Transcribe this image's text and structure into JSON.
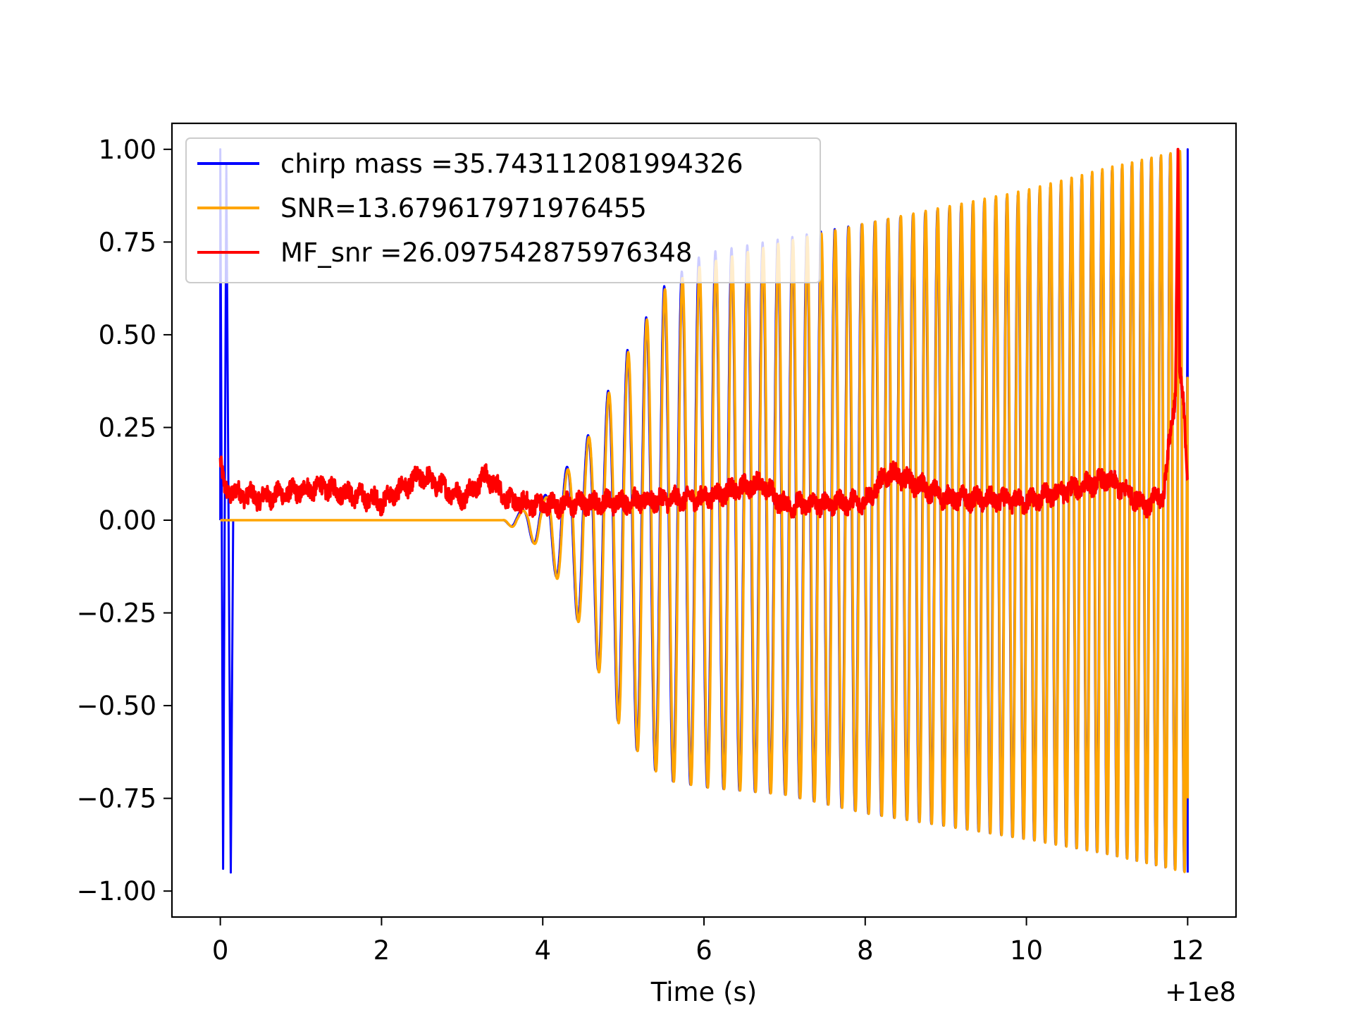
{
  "chart_data": {
    "type": "line",
    "title": "",
    "xlabel": "Time (s)",
    "ylabel": "",
    "x_offset_label": "+1e8",
    "xlim": [
      -0.6,
      12.6
    ],
    "ylim": [
      -1.07,
      1.07
    ],
    "grid": false,
    "legend_position": "upper-left",
    "x_ticks": [
      {
        "value": 0,
        "label": "0"
      },
      {
        "value": 2,
        "label": "2"
      },
      {
        "value": 4,
        "label": "4"
      },
      {
        "value": 6,
        "label": "6"
      },
      {
        "value": 8,
        "label": "8"
      },
      {
        "value": 10,
        "label": "10"
      },
      {
        "value": 12,
        "label": "12"
      }
    ],
    "y_ticks": [
      {
        "value": 1.0,
        "label": "1.00"
      },
      {
        "value": 0.75,
        "label": "0.75"
      },
      {
        "value": 0.5,
        "label": "0.50"
      },
      {
        "value": 0.25,
        "label": "0.25"
      },
      {
        "value": 0.0,
        "label": "0.00"
      },
      {
        "value": -0.25,
        "label": "−0.25"
      },
      {
        "value": -0.5,
        "label": "−0.50"
      },
      {
        "value": -0.75,
        "label": "−0.75"
      },
      {
        "value": -1.0,
        "label": "−1.00"
      }
    ],
    "series": [
      {
        "name": "chirp mass =35.743112081994326",
        "color": "#0000ff",
        "description": "template waveform",
        "points": [
          [
            0.0,
            1.0
          ],
          [
            0.04,
            -0.94
          ],
          [
            0.08,
            0.96
          ],
          [
            0.14,
            -0.95
          ],
          [
            3.6,
            0.0
          ],
          [
            6.0,
            0.72
          ],
          [
            8.0,
            0.8
          ],
          [
            10.0,
            0.88
          ],
          [
            12.0,
            1.0
          ],
          [
            12.0,
            -0.95
          ]
        ]
      },
      {
        "name": "SNR=13.679617971976455",
        "color": "#ffa500",
        "description": "chirp data",
        "envelope_upper": [
          [
            0.0,
            0.0
          ],
          [
            3.5,
            0.0
          ],
          [
            4.0,
            0.05
          ],
          [
            4.5,
            0.19
          ],
          [
            5.0,
            0.43
          ],
          [
            5.5,
            0.62
          ],
          [
            6.0,
            0.69
          ],
          [
            7.0,
            0.75
          ],
          [
            8.0,
            0.8
          ],
          [
            10.0,
            0.89
          ],
          [
            11.0,
            0.95
          ],
          [
            12.0,
            1.0
          ]
        ],
        "envelope_lower": [
          [
            0.0,
            0.0
          ],
          [
            3.5,
            0.0
          ],
          [
            4.0,
            -0.08
          ],
          [
            4.5,
            -0.3
          ],
          [
            5.0,
            -0.58
          ],
          [
            5.5,
            -0.7
          ],
          [
            6.0,
            -0.72
          ],
          [
            7.0,
            -0.74
          ],
          [
            8.0,
            -0.79
          ],
          [
            10.0,
            -0.86
          ],
          [
            11.0,
            -0.9
          ],
          [
            12.0,
            -0.95
          ]
        ]
      },
      {
        "name": "MF_snr =26.097542875976348",
        "color": "#ff0000",
        "description": "matched filter output",
        "points": [
          [
            0.0,
            0.16
          ],
          [
            0.05,
            0.08
          ],
          [
            0.5,
            0.06
          ],
          [
            1.25,
            0.09
          ],
          [
            2.0,
            0.05
          ],
          [
            2.5,
            0.12
          ],
          [
            3.0,
            0.06
          ],
          [
            3.3,
            0.12
          ],
          [
            3.6,
            0.05
          ],
          [
            4.0,
            0.04
          ],
          [
            5.0,
            0.05
          ],
          [
            6.0,
            0.06
          ],
          [
            6.7,
            0.1
          ],
          [
            7.0,
            0.04
          ],
          [
            8.0,
            0.05
          ],
          [
            8.3,
            0.13
          ],
          [
            9.0,
            0.06
          ],
          [
            10.0,
            0.05
          ],
          [
            11.0,
            0.11
          ],
          [
            11.5,
            0.04
          ],
          [
            11.7,
            0.07
          ],
          [
            11.85,
            0.35
          ],
          [
            11.88,
            1.0
          ],
          [
            11.9,
            0.4
          ],
          [
            11.95,
            0.3
          ],
          [
            12.0,
            0.12
          ]
        ]
      }
    ]
  }
}
